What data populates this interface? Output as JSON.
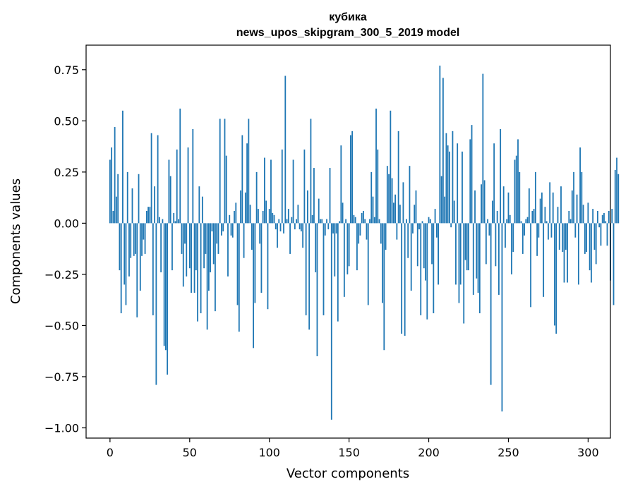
{
  "chart_data": {
    "type": "bar",
    "title": "кубика",
    "subtitle": "news_upos_skipgram_300_5_2019 model",
    "xlabel": "Vector components",
    "ylabel": "Components values",
    "xlim": [
      -15,
      314
    ],
    "ylim": [
      -1.05,
      0.87
    ],
    "xticks": [
      0,
      50,
      100,
      150,
      200,
      250,
      300
    ],
    "yticks": [
      0.75,
      0.5,
      0.25,
      0.0,
      -0.25,
      -0.5,
      -0.75,
      -1.0
    ],
    "ytick_labels": [
      "0.75",
      "0.50",
      "0.25",
      "0.00",
      "−0.25",
      "−0.50",
      "−0.75",
      "−1.00"
    ],
    "grid": false,
    "bar_color": "#1f77b4",
    "x_start": 0,
    "values": [
      0.31,
      0.37,
      0.06,
      0.47,
      0.13,
      0.24,
      -0.23,
      -0.44,
      0.55,
      -0.3,
      -0.4,
      0.25,
      -0.26,
      -0.17,
      0.17,
      -0.16,
      -0.15,
      -0.46,
      0.24,
      -0.33,
      -0.16,
      -0.08,
      -0.15,
      0.06,
      0.08,
      0.08,
      0.44,
      -0.45,
      0.18,
      -0.79,
      0.43,
      0.03,
      -0.24,
      0.02,
      -0.6,
      -0.62,
      -0.74,
      0.31,
      0.23,
      -0.23,
      0.05,
      0.01,
      0.36,
      0.02,
      0.56,
      -0.15,
      -0.31,
      -0.1,
      -0.26,
      0.37,
      -0.22,
      -0.34,
      0.46,
      -0.34,
      -0.23,
      -0.48,
      0.18,
      -0.44,
      0.13,
      -0.22,
      -0.15,
      -0.52,
      -0.33,
      -0.24,
      -0.04,
      -0.2,
      -0.43,
      -0.1,
      -0.15,
      0.51,
      -0.06,
      -0.04,
      0.51,
      0.33,
      -0.26,
      0.04,
      -0.06,
      -0.07,
      0.06,
      0.1,
      -0.4,
      -0.53,
      0.16,
      0.43,
      -0.17,
      0.15,
      0.39,
      0.51,
      0.09,
      -0.13,
      -0.61,
      -0.39,
      0.25,
      0.07,
      -0.1,
      -0.34,
      0.06,
      0.32,
      0.11,
      -0.42,
      0.07,
      0.31,
      0.05,
      0.04,
      -0.03,
      -0.12,
      0.02,
      -0.04,
      0.36,
      -0.05,
      0.72,
      0.02,
      0.07,
      -0.15,
      0.03,
      0.31,
      -0.03,
      0.02,
      0.09,
      -0.03,
      -0.04,
      -0.12,
      0.36,
      -0.45,
      0.16,
      -0.52,
      0.51,
      0.04,
      0.27,
      -0.24,
      -0.65,
      0.12,
      0.02,
      0.02,
      -0.45,
      -0.06,
      0.02,
      -0.03,
      0.27,
      -0.96,
      -0.05,
      -0.26,
      -0.05,
      -0.48,
      0.01,
      0.38,
      0.1,
      -0.36,
      0.02,
      -0.25,
      -0.21,
      0.43,
      0.45,
      0.04,
      0.03,
      -0.23,
      -0.1,
      -0.06,
      0.05,
      0.06,
      0.02,
      -0.08,
      -0.4,
      0.02,
      0.25,
      0.13,
      0.03,
      0.56,
      0.36,
      0.02,
      -0.1,
      -0.39,
      -0.62,
      -0.13,
      0.28,
      0.24,
      0.55,
      0.22,
      0.1,
      0.14,
      -0.08,
      0.45,
      0.09,
      -0.54,
      0.2,
      -0.55,
      0.02,
      -0.17,
      0.28,
      -0.33,
      -0.05,
      0.09,
      0.16,
      -0.21,
      -0.03,
      -0.45,
      0.01,
      -0.22,
      -0.28,
      -0.47,
      0.03,
      0.02,
      -0.2,
      -0.44,
      0.07,
      -0.07,
      -0.3,
      0.77,
      0.23,
      0.71,
      0.13,
      0.44,
      0.38,
      0.35,
      -0.02,
      0.45,
      0.11,
      -0.3,
      0.39,
      -0.39,
      -0.3,
      0.35,
      -0.49,
      -0.18,
      -0.23,
      -0.23,
      0.41,
      0.48,
      -0.35,
      0.16,
      -0.27,
      -0.34,
      -0.44,
      0.19,
      0.73,
      0.21,
      -0.2,
      0.02,
      -0.06,
      -0.79,
      0.11,
      0.39,
      -0.21,
      0.06,
      -0.35,
      0.46,
      -0.92,
      0.18,
      -0.12,
      0.02,
      0.15,
      0.04,
      -0.25,
      -0.14,
      0.31,
      0.33,
      0.41,
      0.25,
      0.01,
      -0.15,
      -0.06,
      0.02,
      0.03,
      0.17,
      -0.41,
      0.06,
      0.07,
      0.25,
      -0.16,
      -0.07,
      0.12,
      0.15,
      -0.36,
      0.08,
      0.01,
      -0.08,
      0.2,
      -0.07,
      0.15,
      -0.5,
      -0.54,
      0.08,
      -0.13,
      0.18,
      -0.14,
      -0.29,
      -0.13,
      -0.29,
      0.06,
      0.02,
      0.16,
      0.25,
      -0.07,
      0.14,
      -0.3,
      0.37,
      0.25,
      0.09,
      -0.15,
      -0.14,
      0.1,
      -0.23,
      -0.29,
      0.07,
      -0.13,
      -0.2,
      0.06,
      -0.02,
      -0.11,
      0.04,
      0.05,
      0.01,
      -0.11,
      0.06,
      -0.28,
      0.07,
      -0.4,
      0.26,
      0.32,
      0.24
    ]
  }
}
